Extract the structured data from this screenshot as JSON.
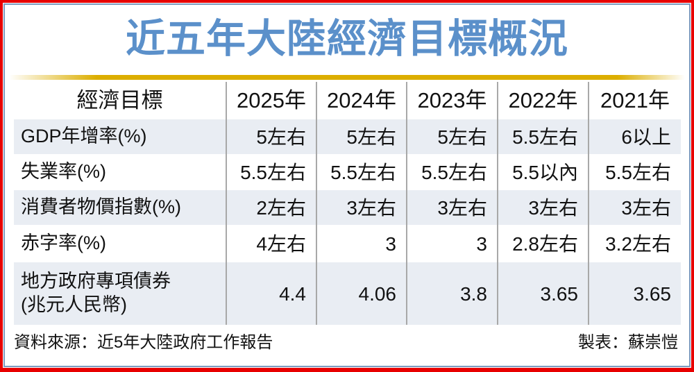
{
  "page_title": "近五年大陸經濟目標概況",
  "colors": {
    "border_red": "#e80000",
    "border_blue": "#7b9abf",
    "title_blue": "#5b90ca",
    "gold": "#dcae00",
    "row_alt_bg": "#e9edf3",
    "separator_gray": "#a8a8a8",
    "text": "#111111"
  },
  "chart_data": {
    "type": "table",
    "title": "近五年大陸經濟目標概況",
    "columns": [
      "經濟目標",
      "2025年",
      "2024年",
      "2023年",
      "2022年",
      "2021年"
    ],
    "rows": [
      {
        "label": "GDP年增率(%)",
        "values": [
          "5左右",
          "5左右",
          "5左右",
          "5.5左右",
          "6以上"
        ]
      },
      {
        "label": "失業率(%)",
        "values": [
          "5.5左右",
          "5.5左右",
          "5.5左右",
          "5.5以內",
          "5.5左右"
        ]
      },
      {
        "label": "消費者物價指數(%)",
        "values": [
          "2左右",
          "3左右",
          "3左右",
          "3左右",
          "3左右"
        ]
      },
      {
        "label": "赤字率(%)",
        "values": [
          "4左右",
          "3",
          "3",
          "2.8左右",
          "3.2左右"
        ]
      },
      {
        "label": "地方政府專項債券\n(兆元人民幣)",
        "values": [
          "4.4",
          "4.06",
          "3.8",
          "3.65",
          "3.65"
        ]
      }
    ],
    "source_note": "資料來源：近5年大陸政府工作報告",
    "credit": "製表：蘇崇愷",
    "layout": {
      "alternating_row_shading": "rows 1,3,5 shaded light blue-gray",
      "value_alignment": "right",
      "grid": "vertical separators only"
    }
  }
}
